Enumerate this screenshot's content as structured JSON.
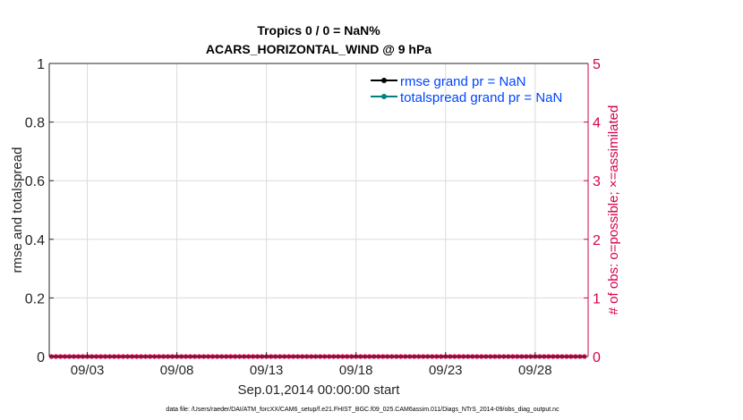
{
  "chart_data": {
    "type": "line",
    "title": "Tropics 0 / 0 = NaN%",
    "subtitle": "ACARS_HORIZONTAL_WIND @ 9 hPa",
    "xlabel": "Sep.01,2014 00:00:00 start",
    "ylabel_left": "rmse and totalspread",
    "ylabel_right": "# of obs: o=possible; ×=assimilated",
    "ylim_left": [
      0,
      1
    ],
    "ylim_right": [
      0,
      5
    ],
    "yticks_left": [
      "0",
      "0.2",
      "0.4",
      "0.6",
      "0.8",
      "1"
    ],
    "yticks_right": [
      "0",
      "1",
      "2",
      "3",
      "4",
      "5"
    ],
    "xlim": [
      "2014-08-31T21:00",
      "2014-09-30T23:00"
    ],
    "xticks": [
      {
        "date": "2014-09-03",
        "label": "09/03"
      },
      {
        "date": "2014-09-08",
        "label": "09/08"
      },
      {
        "date": "2014-09-13",
        "label": "09/13"
      },
      {
        "date": "2014-09-18",
        "label": "09/18"
      },
      {
        "date": "2014-09-23",
        "label": "09/23"
      },
      {
        "date": "2014-09-28",
        "label": "09/28"
      }
    ],
    "grid": true,
    "legend_position": "top-right",
    "series": [
      {
        "name": "rmse grand pr = NaN",
        "axis": "left",
        "color": "#000000",
        "values": []
      },
      {
        "name": "totalspread grand pr = NaN",
        "axis": "left",
        "color": "#008080",
        "values": []
      },
      {
        "name": "obs possible",
        "axis": "right",
        "color": "#d6004e",
        "x_start": "2014-09-01T00:00",
        "x_step_hours": 6,
        "count": 120,
        "value": 0
      },
      {
        "name": "obs assimilated",
        "axis": "right",
        "color": "#d6004e",
        "x_start": "2014-09-01T00:00",
        "x_step_hours": 6,
        "count": 120,
        "value": 0
      }
    ],
    "legend_text_color": "#0044ff",
    "right_axis_color": "#d6004e"
  },
  "footer": "data file: /Users/raeder/DAI/ATM_forcXX/CAM6_setup/f.e21.FHIST_BGC.f09_025.CAM6assim.011/Diags_NTrS_2014-09/obs_diag_output.nc"
}
